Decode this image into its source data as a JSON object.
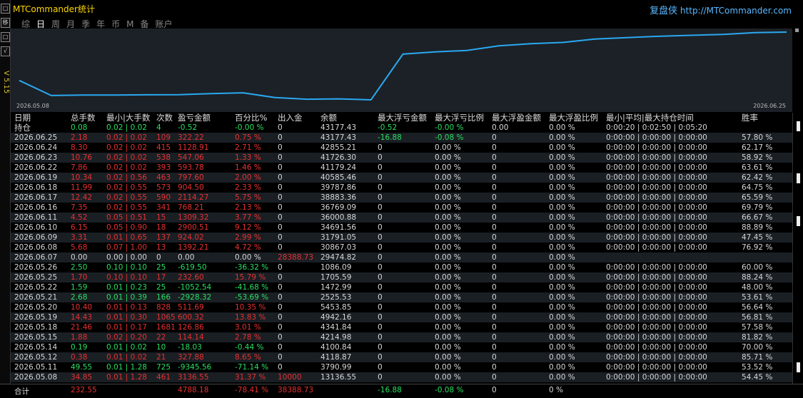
{
  "app": {
    "title": "MTCommander统计",
    "brand_cn": "复盘侠",
    "brand_url": "http://MTCommander.com",
    "version": "V 5.15",
    "left_toolbar": [
      "□",
      "移",
      "□",
      "√"
    ]
  },
  "tabs": [
    {
      "label": "综",
      "active": false
    },
    {
      "label": "日",
      "active": true
    },
    {
      "label": "周",
      "active": false
    },
    {
      "label": "月",
      "active": false
    },
    {
      "label": "季",
      "active": false
    },
    {
      "label": "年",
      "active": false
    },
    {
      "label": "币",
      "active": false
    },
    {
      "label": "M",
      "active": false
    },
    {
      "label": "备",
      "active": false
    },
    {
      "label": "账户",
      "active": false
    }
  ],
  "chart_data": {
    "type": "line",
    "x_start_label": "2026.05.08",
    "x_end_label": "2026.06.25",
    "x": [
      "2026.05.08",
      "2026.05.11",
      "2026.05.12",
      "2026.05.14",
      "2026.05.15",
      "2026.05.18",
      "2026.05.19",
      "2026.05.20",
      "2026.05.21",
      "2026.05.22",
      "2026.05.25",
      "2026.05.26",
      "2026.06.07",
      "2026.06.08",
      "2026.06.09",
      "2026.06.10",
      "2026.06.11",
      "2026.06.16",
      "2026.06.17",
      "2026.06.18",
      "2026.06.19",
      "2026.06.22",
      "2026.06.23",
      "2026.06.24",
      "2026.06.25"
    ],
    "values": [
      13136.55,
      3790.99,
      4118.87,
      4100.84,
      4214.98,
      4341.84,
      4942.16,
      5453.85,
      2525.53,
      1472.99,
      1705.59,
      1086.09,
      29474.82,
      30867.03,
      31791.05,
      34691.56,
      36000.88,
      36769.09,
      38883.36,
      39787.86,
      40585.46,
      41179.24,
      41726.3,
      42855.21,
      43177.43
    ],
    "color": "#2aa8f0"
  },
  "columns": [
    "日期",
    "总手数",
    "最小|大手数",
    "次数",
    "盈亏金额",
    "百分比%",
    "出入金",
    "余额",
    "最大浮亏金额",
    "最大浮亏比例",
    "最大浮盈金额",
    "最大浮盈比例",
    "最小|平均|最大持仓时间",
    "胜率"
  ],
  "holding": [
    "持仓",
    "0.08",
    "0.02 | 0.02",
    "4",
    "-0.52",
    "-0.00 %",
    "0",
    "43177.43",
    "-0.52",
    "-0.00 %",
    "0.00",
    "0.00 %",
    "0:00:20 | 0:02:50 | 0:05:20",
    ""
  ],
  "rows": [
    [
      "2026.06.25",
      "2.18",
      "0.02 | 0.02",
      "109",
      "322.22",
      "0.75 %",
      "0",
      "43177.43",
      "-16.88",
      "-0.08 %",
      "0",
      "0.00 %",
      "0:00:00 | 0:00:00 | 0:00:00",
      "57.80 %"
    ],
    [
      "2026.06.24",
      "8.30",
      "0.02 | 0.02",
      "415",
      "1128.91",
      "2.71 %",
      "0",
      "42855.21",
      "0",
      "0.00 %",
      "0",
      "0.00 %",
      "0:00:00 | 0:00:00 | 0:00:00",
      "62.17 %"
    ],
    [
      "2026.06.23",
      "10.76",
      "0.02 | 0.02",
      "538",
      "547.06",
      "1.33 %",
      "0",
      "41726.30",
      "0",
      "0.00 %",
      "0",
      "0.00 %",
      "0:00:00 | 0:00:00 | 0:00:00",
      "58.92 %"
    ],
    [
      "2026.06.22",
      "7.86",
      "0.02 | 0.02",
      "393",
      "593.78",
      "1.46 %",
      "0",
      "41179.24",
      "0",
      "0.00 %",
      "0",
      "0.00 %",
      "0:00:00 | 0:00:00 | 0:00:00",
      "63.61 %"
    ],
    [
      "2026.06.19",
      "10.34",
      "0.02 | 0.56",
      "463",
      "797.60",
      "2.00 %",
      "0",
      "40585.46",
      "0",
      "0.00 %",
      "0",
      "0.00 %",
      "0:00:00 | 0:00:00 | 0:00:00",
      "62.42 %"
    ],
    [
      "2026.06.18",
      "11.99",
      "0.02 | 0.55",
      "573",
      "904.50",
      "2.33 %",
      "0",
      "39787.86",
      "0",
      "0.00 %",
      "0",
      "0.00 %",
      "0:00:00 | 0:00:00 | 0:00:00",
      "64.75 %"
    ],
    [
      "2026.06.17",
      "12.42",
      "0.02 | 0.55",
      "590",
      "2114.27",
      "5.75 %",
      "0",
      "38883.36",
      "0",
      "0.00 %",
      "0",
      "0.00 %",
      "0:00:00 | 0:00:00 | 0:00:00",
      "65.59 %"
    ],
    [
      "2026.06.16",
      "7.35",
      "0.02 | 0.55",
      "341",
      "768.21",
      "2.13 %",
      "0",
      "36769.09",
      "0",
      "0.00 %",
      "0",
      "0.00 %",
      "0:00:00 | 0:00:00 | 0:00:00",
      "69.79 %"
    ],
    [
      "2026.06.11",
      "4.52",
      "0.05 | 0.51",
      "15",
      "1309.32",
      "3.77 %",
      "0",
      "36000.88",
      "0",
      "0.00 %",
      "0",
      "0.00 %",
      "0:00:00 | 0:00:00 | 0:00:00",
      "66.67 %"
    ],
    [
      "2026.06.10",
      "6.15",
      "0.05 | 0.90",
      "18",
      "2900.51",
      "9.12 %",
      "0",
      "34691.56",
      "0",
      "0.00 %",
      "0",
      "0.00 %",
      "0:00:00 | 0:00:00 | 0:00:00",
      "88.89 %"
    ],
    [
      "2026.06.09",
      "3.31",
      "0.01 | 0.65",
      "137",
      "924.02",
      "2.99 %",
      "0",
      "31791.05",
      "0",
      "0.00 %",
      "0",
      "0.00 %",
      "0:00:00 | 0:00:00 | 0:00:00",
      "47.45 %"
    ],
    [
      "2026.06.08",
      "5.68",
      "0.07 | 1.00",
      "13",
      "1392.21",
      "4.72 %",
      "0",
      "30867.03",
      "0",
      "0.00 %",
      "0",
      "0.00 %",
      "0:00:00 | 0:00:00 | 0:00:00",
      "76.92 %"
    ],
    [
      "2026.06.07",
      "0.00",
      "0.00 | 0.00",
      "0",
      "0.00",
      "0.00 %",
      "28388.73",
      "29474.82",
      "0",
      "0.00 %",
      "0",
      "0.00 %",
      "",
      ""
    ],
    [
      "2026.05.26",
      "2.50",
      "0.10 | 0.10",
      "25",
      "-619.50",
      "-36.32 %",
      "0",
      "1086.09",
      "0",
      "0.00 %",
      "0",
      "0.00 %",
      "0:00:00 | 0:00:00 | 0:00:00",
      "60.00 %"
    ],
    [
      "2026.05.25",
      "1.70",
      "0.10 | 0.10",
      "17",
      "232.60",
      "15.79 %",
      "0",
      "1705.59",
      "0",
      "0.00 %",
      "0",
      "0.00 %",
      "0:00:00 | 0:00:00 | 0:00:00",
      "88.24 %"
    ],
    [
      "2026.05.22",
      "1.59",
      "0.01 | 0.23",
      "25",
      "-1052.54",
      "-41.68 %",
      "0",
      "1472.99",
      "0",
      "0.00 %",
      "0",
      "0.00 %",
      "0:00:00 | 0:00:00 | 0:00:00",
      "48.00 %"
    ],
    [
      "2026.05.21",
      "2.68",
      "0.01 | 0.39",
      "166",
      "-2928.32",
      "-53.69 %",
      "0",
      "2525.53",
      "0",
      "0.00 %",
      "0",
      "0.00 %",
      "0:00:00 | 0:00:00 | 0:00:00",
      "53.61 %"
    ],
    [
      "2026.05.20",
      "10.40",
      "0.01 | 0.13",
      "828",
      "511.69",
      "10.35 %",
      "0",
      "5453.85",
      "0",
      "0.00 %",
      "0",
      "0.00 %",
      "0:00:00 | 0:00:00 | 0:00:00",
      "56.64 %"
    ],
    [
      "2026.05.19",
      "14.43",
      "0.01 | 0.30",
      "1065",
      "600.32",
      "13.83 %",
      "0",
      "4942.16",
      "0",
      "0.00 %",
      "0",
      "0.00 %",
      "0:00:00 | 0:00:00 | 0:00:00",
      "56.81 %"
    ],
    [
      "2026.05.18",
      "21.46",
      "0.01 | 0.17",
      "1681",
      "126.86",
      "3.01 %",
      "0",
      "4341.84",
      "0",
      "0.00 %",
      "0",
      "0.00 %",
      "0:00:00 | 0:00:00 | 0:00:00",
      "57.58 %"
    ],
    [
      "2026.05.15",
      "1.88",
      "0.02 | 0.20",
      "22",
      "114.14",
      "2.78 %",
      "0",
      "4214.98",
      "0",
      "0.00 %",
      "0",
      "0.00 %",
      "0:00:00 | 0:00:00 | 0:00:00",
      "81.82 %"
    ],
    [
      "2026.05.14",
      "0.19",
      "0.01 | 0.02",
      "10",
      "-18.03",
      "-0.44 %",
      "0",
      "4100.84",
      "0",
      "0.00 %",
      "0",
      "0.00 %",
      "0:00:00 | 0:00:00 | 0:00:00",
      "70.00 %"
    ],
    [
      "2026.05.12",
      "0.38",
      "0.01 | 0.02",
      "21",
      "327.88",
      "8.65 %",
      "0",
      "4118.87",
      "0",
      "0.00 %",
      "0",
      "0.00 %",
      "0:00:00 | 0:00:00 | 0:00:00",
      "85.71 %"
    ],
    [
      "2026.05.11",
      "49.55",
      "0.01 | 1.28",
      "725",
      "-9345.56",
      "-71.14 %",
      "0",
      "3790.99",
      "0",
      "0.00 %",
      "0",
      "0.00 %",
      "0:00:00 | 0:00:00 | 0:00:00",
      "53.52 %"
    ],
    [
      "2026.05.08",
      "34.85",
      "0.01 | 1.28",
      "461",
      "3136.55",
      "31.37 %",
      "10000",
      "13136.55",
      "0",
      "0.00 %",
      "0",
      "0.00 %",
      "0:00:00 | 0:00:00 | 0:00:00",
      "54.45 %"
    ]
  ],
  "total": {
    "label": "合计",
    "lots": "232.55",
    "pnl": "4788.18",
    "pct": "-78.41 %",
    "flow": "38388.73",
    "max_float_loss": "-16.88",
    "max_float_loss_pct": "-0.08 %",
    "max_float_profit": "0",
    "max_float_profit_pct": "0 %"
  },
  "colors": {
    "profit": "#e83030",
    "loss": "#28e060",
    "neutral": "#d8d8d8",
    "title": "#ffd800",
    "brand": "#5ab8ff"
  }
}
